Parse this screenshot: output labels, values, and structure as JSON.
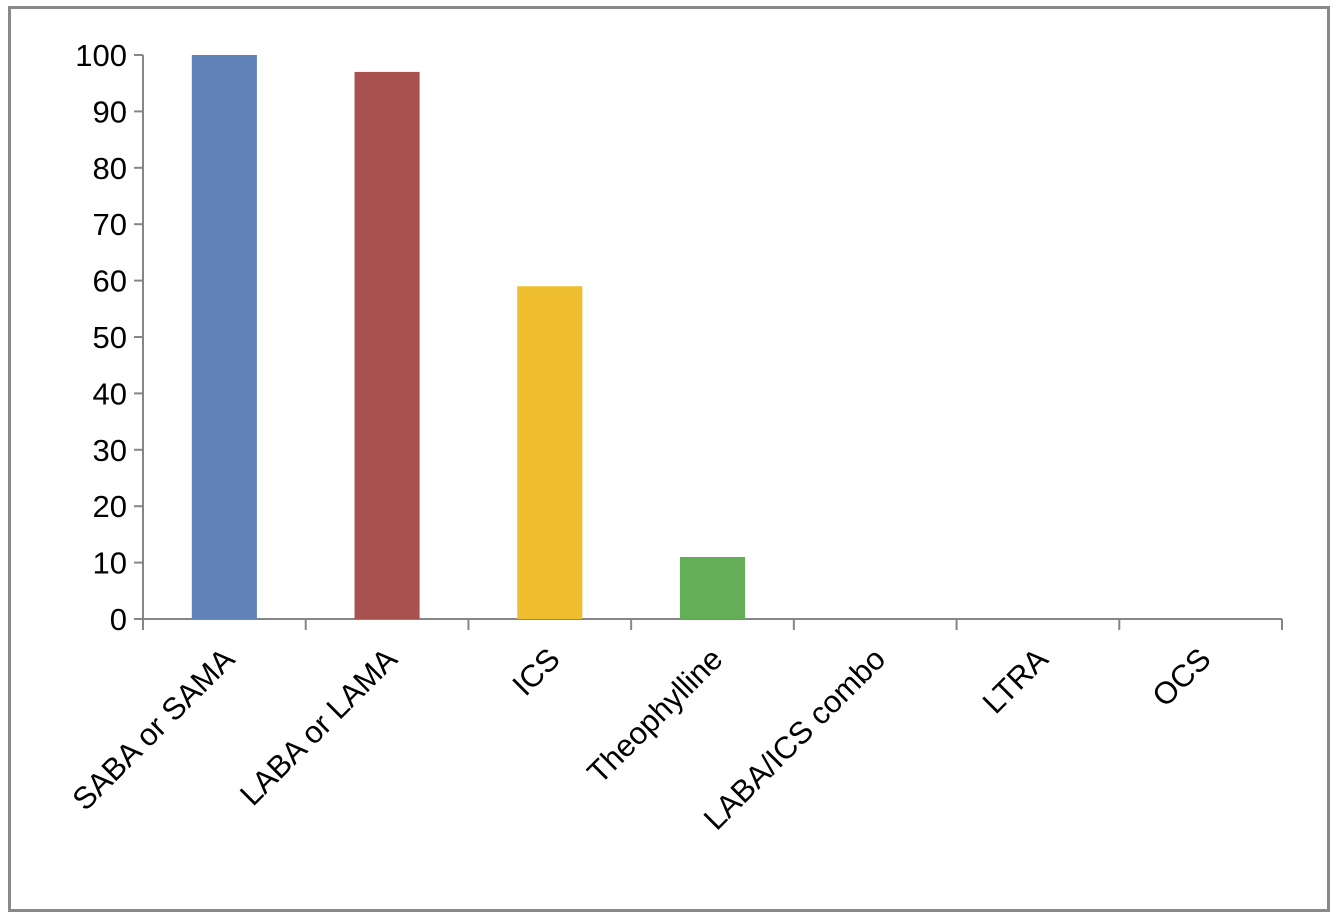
{
  "chart_data": {
    "type": "bar",
    "title": "",
    "xlabel": "",
    "ylabel": "",
    "categories": [
      "SABA or SAMA",
      "LABA or LAMA",
      "ICS",
      "Theophylline",
      "LABA/ICS combo",
      "LTRA",
      "OCS"
    ],
    "values": [
      100,
      97,
      59,
      11,
      0,
      0,
      0
    ],
    "colors": [
      "#6282BA",
      "#A8514F",
      "#EFBE2F",
      "#65AE58",
      "#8D8D8D",
      "#8D8D8D",
      "#8D8D8D"
    ],
    "ylim": [
      0,
      100
    ],
    "yticks": [
      0,
      10,
      20,
      30,
      40,
      50,
      60,
      70,
      80,
      90,
      100
    ],
    "grid": false,
    "legend": "none"
  }
}
